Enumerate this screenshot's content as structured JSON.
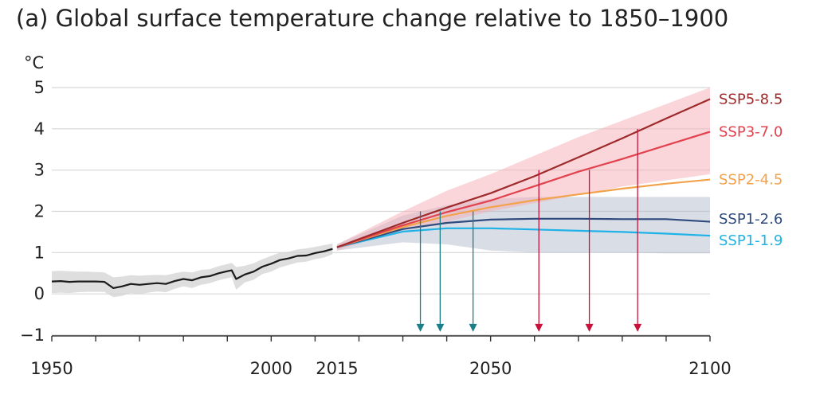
{
  "chart_data": {
    "type": "line",
    "title": "(a) Global surface temperature change relative to 1850–1900",
    "ylabel": "°C",
    "xlim": [
      1950,
      2100
    ],
    "ylim": [
      -1,
      5
    ],
    "x_ticks": [
      "1950",
      "2000",
      "2015",
      "2050",
      "2100"
    ],
    "y_ticks": [
      "5",
      "4",
      "3",
      "2",
      "1",
      "0",
      "−1"
    ],
    "grid": true,
    "historical": {
      "x": [
        1950,
        1952,
        1954,
        1956,
        1958,
        1960,
        1962,
        1964,
        1966,
        1968,
        1970,
        1972,
        1974,
        1976,
        1978,
        1980,
        1982,
        1984,
        1986,
        1988,
        1990,
        1991,
        1992,
        1994,
        1996,
        1998,
        2000,
        2002,
        2004,
        2006,
        2008,
        2010,
        2012,
        2014
      ],
      "y": [
        0.3,
        0.31,
        0.29,
        0.3,
        0.3,
        0.3,
        0.29,
        0.14,
        0.18,
        0.24,
        0.22,
        0.24,
        0.26,
        0.24,
        0.31,
        0.36,
        0.33,
        0.4,
        0.43,
        0.5,
        0.55,
        0.57,
        0.36,
        0.47,
        0.54,
        0.66,
        0.73,
        0.82,
        0.86,
        0.92,
        0.93,
        0.99,
        1.03,
        1.09
      ],
      "band_upper": [
        0.55,
        0.56,
        0.55,
        0.54,
        0.54,
        0.53,
        0.52,
        0.4,
        0.42,
        0.45,
        0.44,
        0.45,
        0.46,
        0.45,
        0.5,
        0.54,
        0.52,
        0.58,
        0.6,
        0.67,
        0.72,
        0.75,
        0.65,
        0.68,
        0.74,
        0.84,
        0.92,
        1.0,
        1.02,
        1.08,
        1.1,
        1.14,
        1.18,
        1.22
      ],
      "band_lower": [
        0.02,
        0.03,
        0.02,
        0.04,
        0.05,
        0.05,
        0.05,
        -0.08,
        -0.05,
        0.02,
        0.0,
        0.03,
        0.06,
        0.04,
        0.12,
        0.18,
        0.14,
        0.22,
        0.26,
        0.33,
        0.38,
        0.4,
        0.1,
        0.28,
        0.34,
        0.48,
        0.54,
        0.64,
        0.7,
        0.76,
        0.78,
        0.84,
        0.88,
        0.96
      ]
    },
    "series": [
      {
        "name": "SSP5-8.5",
        "color": "#9e2a2b",
        "x": [
          2015,
          2030,
          2040,
          2050,
          2060,
          2070,
          2080,
          2090,
          2100
        ],
        "y": [
          1.13,
          1.72,
          2.09,
          2.44,
          2.85,
          3.31,
          3.77,
          4.25,
          4.72
        ]
      },
      {
        "name": "SSP3-7.0",
        "color": "#e2424e",
        "x": [
          2015,
          2030,
          2040,
          2050,
          2060,
          2070,
          2080,
          2090,
          2100
        ],
        "y": [
          1.13,
          1.66,
          1.98,
          2.26,
          2.61,
          2.96,
          3.27,
          3.6,
          3.93
        ]
      },
      {
        "name": "SSP2-4.5",
        "color": "#f2a24a",
        "x": [
          2015,
          2030,
          2040,
          2050,
          2060,
          2070,
          2080,
          2090,
          2100
        ],
        "y": [
          1.13,
          1.62,
          1.89,
          2.1,
          2.27,
          2.41,
          2.55,
          2.67,
          2.77
        ]
      },
      {
        "name": "SSP1-2.6",
        "color": "#2f4a7d",
        "x": [
          2015,
          2030,
          2040,
          2050,
          2060,
          2070,
          2080,
          2090,
          2100
        ],
        "y": [
          1.13,
          1.57,
          1.72,
          1.8,
          1.82,
          1.82,
          1.81,
          1.81,
          1.75
        ]
      },
      {
        "name": "SSP1-1.9",
        "color": "#1fb2e6",
        "x": [
          2015,
          2030,
          2040,
          2050,
          2060,
          2070,
          2080,
          2090,
          2100
        ],
        "y": [
          1.13,
          1.51,
          1.59,
          1.59,
          1.56,
          1.53,
          1.5,
          1.46,
          1.41
        ]
      }
    ],
    "ranges": [
      {
        "color": "#f5aeb6",
        "opacity": 0.5,
        "x": [
          2015,
          2030,
          2040,
          2050,
          2060,
          2070,
          2080,
          2090,
          2100
        ],
        "upper": [
          1.2,
          2.0,
          2.5,
          2.9,
          3.35,
          3.8,
          4.2,
          4.6,
          5.0
        ],
        "lower": [
          1.05,
          1.58,
          1.75,
          2.0,
          2.2,
          2.4,
          2.6,
          2.75,
          2.9
        ]
      },
      {
        "color": "#aab3c8",
        "opacity": 0.45,
        "x": [
          2015,
          2030,
          2040,
          2050,
          2060,
          2070,
          2080,
          2090,
          2100
        ],
        "upper": [
          1.2,
          1.9,
          2.15,
          2.3,
          2.35,
          2.35,
          2.35,
          2.35,
          2.35
        ],
        "lower": [
          1.05,
          1.25,
          1.2,
          1.05,
          1.0,
          1.0,
          1.0,
          0.98,
          0.98
        ]
      }
    ],
    "arrows": [
      {
        "x": 2034,
        "y_from": 2.0,
        "y_to": -0.9,
        "color": "#1a7f8a"
      },
      {
        "x": 2038.5,
        "y_from": 2.0,
        "y_to": -0.9,
        "color": "#1a7f8a"
      },
      {
        "x": 2046,
        "y_from": 2.0,
        "y_to": -0.9,
        "color": "#1a7f8a"
      },
      {
        "x": 2061,
        "y_from": 3.0,
        "y_to": -0.9,
        "color": "#c8113b"
      },
      {
        "x": 2072.5,
        "y_from": 3.0,
        "y_to": -0.9,
        "color": "#c8113b"
      },
      {
        "x": 2083.5,
        "y_from": 4.0,
        "y_to": -0.9,
        "color": "#c8113b"
      }
    ]
  }
}
